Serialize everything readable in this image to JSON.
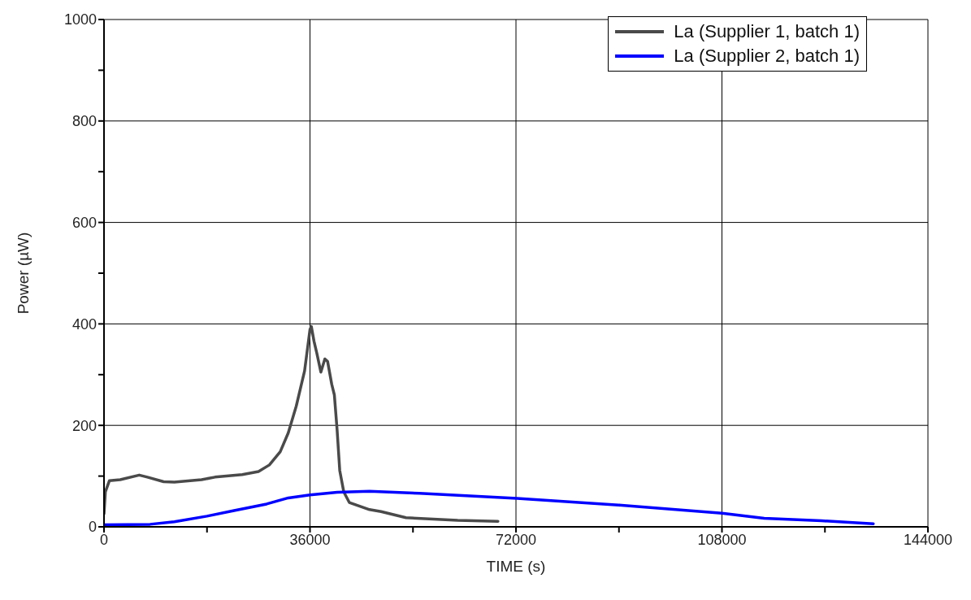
{
  "chart_data": {
    "type": "line",
    "xlabel": "TIME (s)",
    "ylabel": "Power (µW)",
    "xlim": [
      0,
      144000
    ],
    "ylim": [
      0,
      1000
    ],
    "xticks": [
      0,
      {
        "value": 18000,
        "label": null
      },
      36000,
      {
        "value": 54000,
        "label": null
      },
      72000,
      {
        "value": 90000,
        "label": null
      },
      108000,
      {
        "value": 126000,
        "label": null
      },
      144000
    ],
    "yticks": [
      0,
      {
        "value": 100,
        "label": null
      },
      200,
      {
        "value": 300,
        "label": null
      },
      400,
      {
        "value": 500,
        "label": null
      },
      600,
      {
        "value": 700,
        "label": null
      },
      800,
      {
        "value": 900,
        "label": null
      },
      1000
    ],
    "grid": true,
    "legend": "top right",
    "marker": "none",
    "line_style": "solid",
    "series": [
      {
        "name": "La (Supplier 1, batch 1)",
        "color": "#4a4a4a",
        "x": [
          0,
          240,
          950,
          2840,
          6160,
          7580,
          10420,
          12300,
          17050,
          19400,
          24160,
          27000,
          28900,
          30800,
          32200,
          33600,
          35050,
          36000,
          36240,
          36700,
          37200,
          37900,
          38600,
          39080,
          39800,
          40260,
          40740,
          41200,
          41900,
          42870,
          46400,
          48430,
          52770,
          61820,
          68850
        ],
        "values": [
          26,
          69,
          91,
          93,
          102,
          98,
          89,
          88,
          93,
          98,
          103,
          109,
          122,
          148,
          185,
          238,
          307,
          389,
          395,
          366,
          342,
          305,
          331,
          326,
          281,
          260,
          191,
          111,
          69,
          48,
          34,
          30,
          18,
          13,
          11
        ]
      },
      {
        "name": "La (Supplier 2, batch 1)",
        "color": "#0000ff",
        "x": [
          0,
          8050,
          12300,
          17990,
          22740,
          28420,
          32210,
          36000,
          40740,
          46400,
          55130,
          72190,
          89940,
          108000,
          115380,
          125400,
          134460
        ],
        "values": [
          4,
          5,
          10,
          21,
          32,
          45,
          57,
          63,
          68,
          70,
          66,
          56,
          43,
          27,
          17,
          12,
          6
        ]
      }
    ]
  }
}
